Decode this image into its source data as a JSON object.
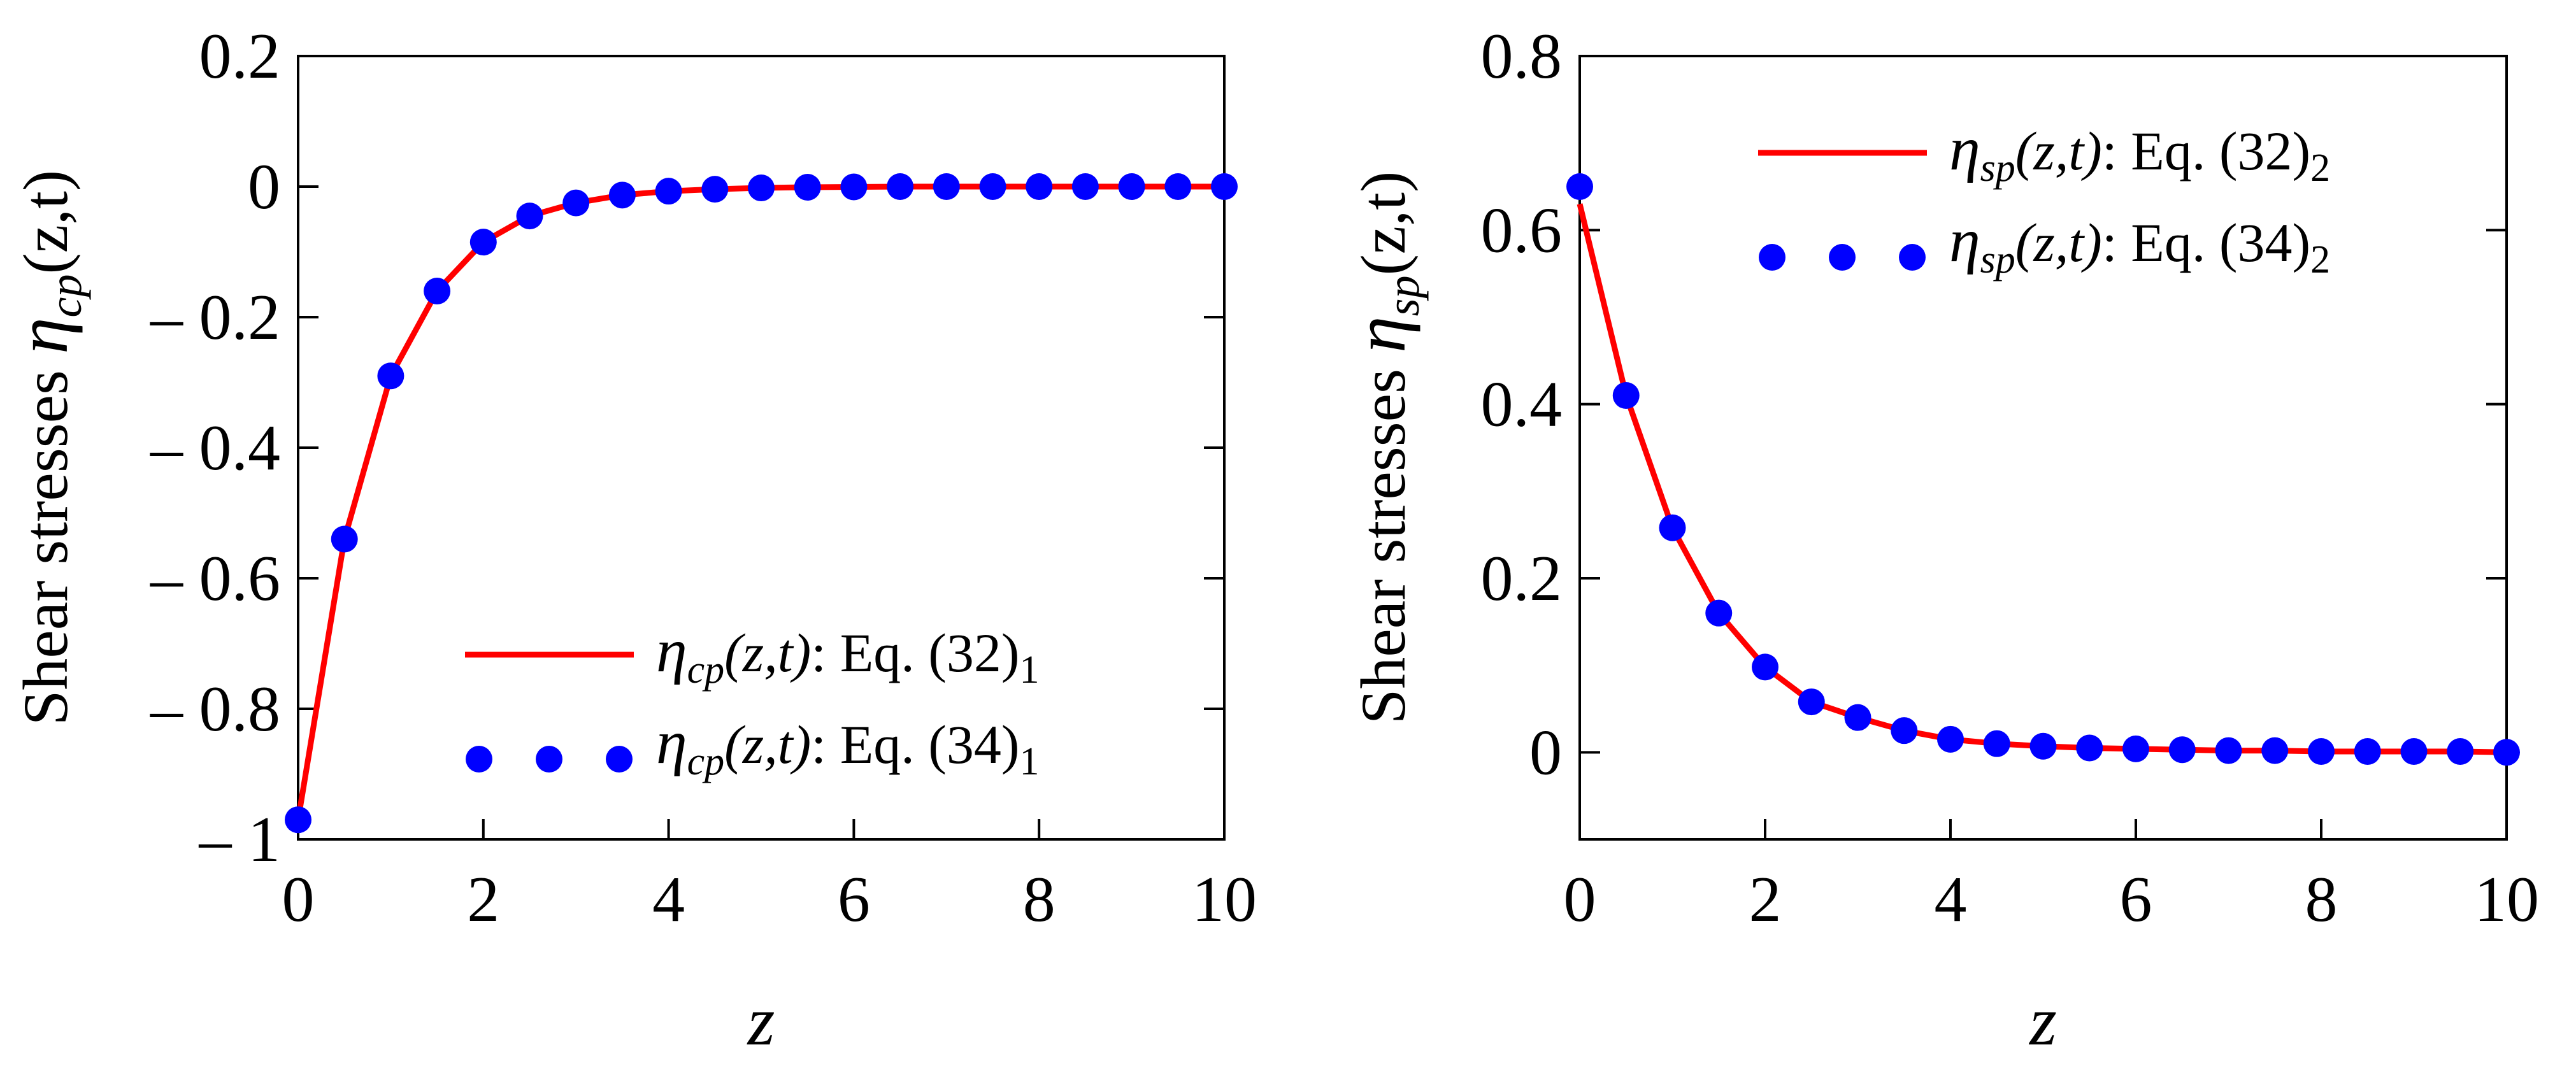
{
  "colors": {
    "line": "#ff0000",
    "marker": "#0000ff"
  },
  "chart_data": [
    {
      "type": "line",
      "xlabel": "z",
      "ylabel": {
        "prefix": "Shear stresses ",
        "symbol": "η",
        "sub": "cp",
        "args": "(z,t)"
      },
      "xlim": [
        0,
        10
      ],
      "ylim": [
        -1,
        0.2
      ],
      "xticks": [
        0,
        2,
        4,
        6,
        8,
        10
      ],
      "xtick_labels": [
        "0",
        "2",
        "4",
        "6",
        "8",
        "10"
      ],
      "yticks": [
        -1,
        -0.8,
        -0.6,
        -0.4,
        -0.2,
        0,
        0.2
      ],
      "ytick_labels": [
        "– 1",
        "– 0.8",
        "– 0.6",
        "– 0.4",
        "– 0.2",
        "0",
        "0.2"
      ],
      "legend_position": "lower-right",
      "series": [
        {
          "name": "Eq. (32)1",
          "style": "line",
          "legend": {
            "symbol": "η",
            "sub": "cp",
            "args": "(z,t)",
            "eq": ": Eq. (32)",
            "eqsub": "1"
          },
          "x": [
            0,
            0.5,
            1,
            1.5,
            2,
            2.5,
            3,
            3.5,
            4,
            4.5,
            5,
            5.5,
            6,
            6.5,
            7,
            7.5,
            8,
            8.5,
            9,
            9.5,
            10
          ],
          "y": [
            -0.97,
            -0.54,
            -0.29,
            -0.16,
            -0.085,
            -0.045,
            -0.025,
            -0.013,
            -0.007,
            -0.004,
            -0.002,
            -0.001,
            -0.0005,
            0,
            0,
            0,
            0,
            0,
            0,
            0,
            0
          ]
        },
        {
          "name": "Eq. (34)1",
          "style": "markers",
          "legend": {
            "symbol": "η",
            "sub": "cp",
            "args": "(z,t)",
            "eq": ": Eq. (34)",
            "eqsub": "1"
          },
          "x": [
            0,
            0.5,
            1,
            1.5,
            2,
            2.5,
            3,
            3.5,
            4,
            4.5,
            5,
            5.5,
            6,
            6.5,
            7,
            7.5,
            8,
            8.5,
            9,
            9.5,
            10
          ],
          "y": [
            -0.97,
            -0.54,
            -0.29,
            -0.16,
            -0.085,
            -0.045,
            -0.025,
            -0.013,
            -0.007,
            -0.004,
            -0.002,
            -0.001,
            -0.0005,
            0,
            0,
            0,
            0,
            0,
            0,
            0,
            0
          ]
        }
      ]
    },
    {
      "type": "line",
      "xlabel": "z",
      "ylabel": {
        "prefix": "Shear stresses ",
        "symbol": "η",
        "sub": "sp",
        "args": "(z,t)"
      },
      "xlim": [
        0,
        10
      ],
      "ylim": [
        -0.1,
        0.8
      ],
      "xticks": [
        0,
        2,
        4,
        6,
        8,
        10
      ],
      "xtick_labels": [
        "0",
        "2",
        "4",
        "6",
        "8",
        "10"
      ],
      "yticks": [
        0,
        0.2,
        0.4,
        0.6,
        0.8
      ],
      "ytick_labels": [
        "0",
        "0.2",
        "0.4",
        "0.6",
        "0.8"
      ],
      "legend_position": "top-right",
      "series": [
        {
          "name": "Eq. (32)2",
          "style": "line",
          "legend": {
            "symbol": "η",
            "sub": "sp",
            "args": "(z,t)",
            "eq": ": Eq. (32)",
            "eqsub": "2"
          },
          "x": [
            0,
            0.5,
            1,
            1.5,
            2,
            2.5,
            3,
            3.5,
            4,
            4.5,
            5,
            5.5,
            6,
            6.5,
            7,
            7.5,
            8,
            8.5,
            9,
            9.5,
            10
          ],
          "y": [
            0.63,
            0.41,
            0.258,
            0.16,
            0.098,
            0.058,
            0.04,
            0.025,
            0.015,
            0.01,
            0.007,
            0.005,
            0.004,
            0.003,
            0.002,
            0.002,
            0.001,
            0.001,
            0.001,
            0.001,
            0
          ]
        },
        {
          "name": "Eq. (34)2",
          "style": "markers",
          "legend": {
            "symbol": "η",
            "sub": "sp",
            "args": "(z,t)",
            "eq": ": Eq. (34)",
            "eqsub": "2"
          },
          "x": [
            0,
            0.5,
            1,
            1.5,
            2,
            2.5,
            3,
            3.5,
            4,
            4.5,
            5,
            5.5,
            6,
            6.5,
            7,
            7.5,
            8,
            8.5,
            9,
            9.5,
            10
          ],
          "y": [
            0.65,
            0.41,
            0.258,
            0.16,
            0.098,
            0.058,
            0.04,
            0.025,
            0.015,
            0.01,
            0.007,
            0.005,
            0.004,
            0.003,
            0.002,
            0.002,
            0.001,
            0.001,
            0.001,
            0.001,
            0
          ]
        }
      ]
    }
  ]
}
